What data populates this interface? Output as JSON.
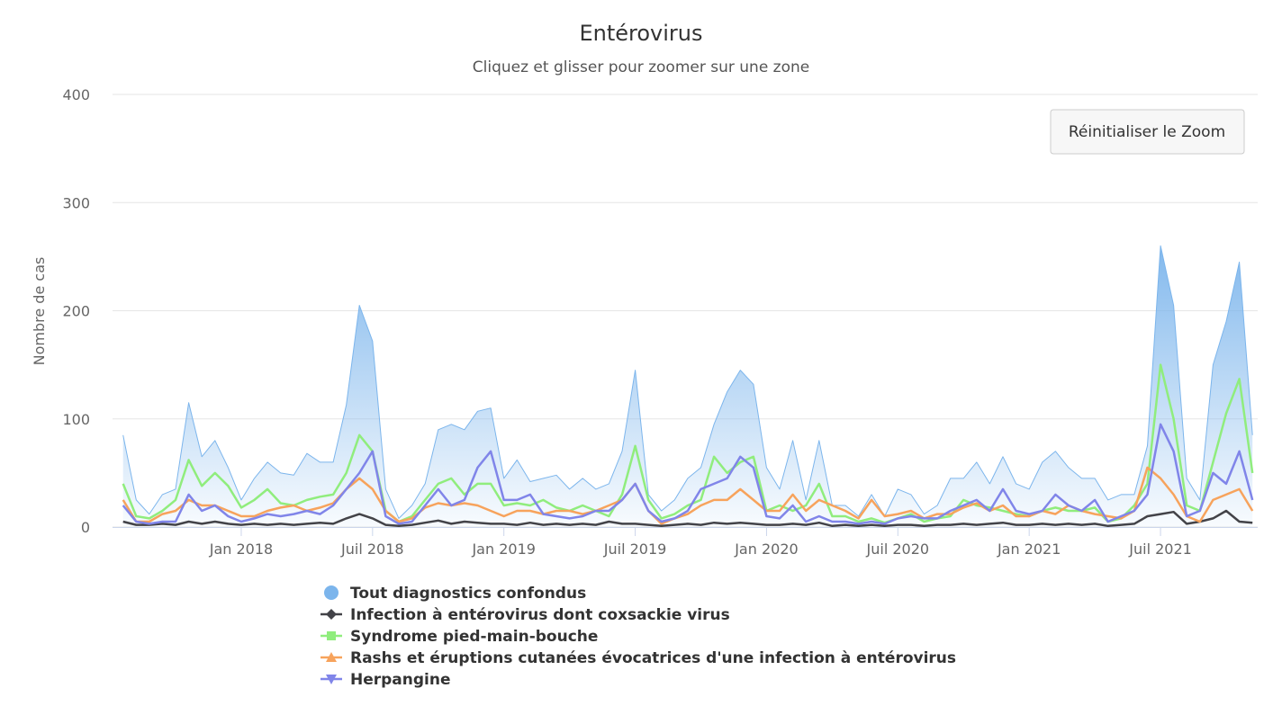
{
  "chart_data": {
    "type": "line",
    "title": "Entérovirus",
    "subtitle": "Cliquez et glisser pour zoomer sur une zone",
    "y_label": "Nombre de cas",
    "button": "Réinitialiser le Zoom",
    "grid": true,
    "xlim": [
      2017.51,
      2021.87
    ],
    "ylim": [
      0,
      400
    ],
    "yticks": [
      0,
      100,
      200,
      300,
      400
    ],
    "xticks": [
      {
        "value": 2018,
        "label": "Jan 2018"
      },
      {
        "value": 2018.5,
        "label": "Juil 2018"
      },
      {
        "value": 2019,
        "label": "Jan 2019"
      },
      {
        "value": 2019.5,
        "label": "Juil 2019"
      },
      {
        "value": 2020,
        "label": "Jan 2020"
      },
      {
        "value": 2020.5,
        "label": "Juil 2020"
      },
      {
        "value": 2021,
        "label": "Jan 2021"
      },
      {
        "value": 2021.5,
        "label": "Juil 2021"
      }
    ],
    "x": [
      2017.55,
      2017.6,
      2017.65,
      2017.7,
      2017.75,
      2017.8,
      2017.85,
      2017.9,
      2017.95,
      2018,
      2018.05,
      2018.1,
      2018.15,
      2018.2,
      2018.25,
      2018.3,
      2018.35,
      2018.4,
      2018.45,
      2018.5,
      2018.55,
      2018.6,
      2018.65,
      2018.7,
      2018.75,
      2018.8,
      2018.85,
      2018.9,
      2018.95,
      2019,
      2019.05,
      2019.1,
      2019.15,
      2019.2,
      2019.25,
      2019.3,
      2019.35,
      2019.4,
      2019.45,
      2019.5,
      2019.55,
      2019.6,
      2019.65,
      2019.7,
      2019.75,
      2019.8,
      2019.85,
      2019.9,
      2019.95,
      2020,
      2020.05,
      2020.1,
      2020.15,
      2020.2,
      2020.25,
      2020.3,
      2020.35,
      2020.4,
      2020.45,
      2020.5,
      2020.55,
      2020.6,
      2020.65,
      2020.7,
      2020.75,
      2020.8,
      2020.85,
      2020.9,
      2020.95,
      2021,
      2021.05,
      2021.1,
      2021.15,
      2021.2,
      2021.25,
      2021.3,
      2021.35,
      2021.4,
      2021.45,
      2021.5,
      2021.55,
      2021.6,
      2021.65,
      2021.7,
      2021.75,
      2021.8,
      2021.85
    ],
    "series": [
      {
        "name": "Tout diagnostics confondus",
        "color": "#7cb5ec",
        "area": true,
        "marker": "circle",
        "values": [
          85,
          25,
          12,
          30,
          35,
          115,
          65,
          80,
          55,
          25,
          45,
          60,
          50,
          48,
          68,
          60,
          60,
          113,
          205,
          172,
          35,
          8,
          20,
          40,
          90,
          95,
          90,
          107,
          110,
          45,
          62,
          42,
          45,
          48,
          35,
          45,
          35,
          40,
          70,
          145,
          30,
          15,
          25,
          45,
          55,
          95,
          125,
          145,
          132,
          55,
          35,
          80,
          25,
          80,
          20,
          20,
          10,
          30,
          10,
          35,
          30,
          12,
          20,
          45,
          45,
          60,
          40,
          65,
          40,
          35,
          60,
          70,
          55,
          45,
          45,
          25,
          30,
          30,
          75,
          260,
          205,
          45,
          25,
          150,
          190,
          245,
          85
        ]
      },
      {
        "name": "Infection à entérovirus dont coxsackie virus",
        "color": "#434348",
        "marker": "diamond",
        "values": [
          5,
          2,
          2,
          3,
          2,
          5,
          3,
          5,
          3,
          2,
          3,
          2,
          3,
          2,
          3,
          4,
          3,
          8,
          12,
          8,
          2,
          1,
          2,
          4,
          6,
          3,
          5,
          4,
          3,
          3,
          2,
          4,
          2,
          3,
          2,
          3,
          2,
          5,
          3,
          3,
          2,
          1,
          2,
          3,
          2,
          4,
          3,
          4,
          3,
          2,
          2,
          3,
          2,
          4,
          1,
          2,
          1,
          2,
          1,
          2,
          2,
          1,
          2,
          2,
          3,
          2,
          3,
          4,
          2,
          2,
          3,
          2,
          3,
          2,
          3,
          1,
          2,
          3,
          10,
          12,
          14,
          3,
          5,
          8,
          15,
          5,
          4
        ]
      },
      {
        "name": "Syndrome pied-main-bouche",
        "color": "#90ed7d",
        "marker": "square",
        "values": [
          40,
          10,
          8,
          15,
          25,
          62,
          38,
          50,
          38,
          18,
          25,
          35,
          22,
          20,
          25,
          28,
          30,
          50,
          85,
          70,
          15,
          5,
          10,
          25,
          40,
          45,
          30,
          40,
          40,
          20,
          22,
          20,
          25,
          18,
          15,
          20,
          15,
          10,
          30,
          75,
          25,
          8,
          12,
          20,
          25,
          65,
          50,
          60,
          65,
          15,
          20,
          15,
          20,
          40,
          10,
          10,
          5,
          8,
          4,
          8,
          12,
          5,
          8,
          10,
          25,
          20,
          18,
          15,
          12,
          10,
          15,
          18,
          15,
          15,
          18,
          5,
          8,
          20,
          40,
          150,
          100,
          20,
          15,
          60,
          105,
          137,
          50
        ]
      },
      {
        "name": "Rashs et éruptions cutanées évocatrices d'une infection à entérovirus",
        "color": "#f7a35c",
        "marker": "triangle",
        "values": [
          25,
          5,
          5,
          12,
          15,
          25,
          20,
          20,
          15,
          10,
          10,
          15,
          18,
          20,
          15,
          18,
          22,
          35,
          45,
          35,
          15,
          5,
          8,
          18,
          22,
          20,
          22,
          20,
          15,
          10,
          15,
          15,
          12,
          15,
          15,
          12,
          15,
          20,
          25,
          40,
          15,
          3,
          8,
          12,
          20,
          25,
          25,
          35,
          25,
          15,
          15,
          30,
          15,
          25,
          20,
          15,
          8,
          25,
          10,
          12,
          15,
          8,
          12,
          12,
          18,
          22,
          15,
          20,
          10,
          10,
          15,
          12,
          20,
          15,
          12,
          10,
          8,
          15,
          55,
          45,
          30,
          10,
          5,
          25,
          30,
          35,
          15
        ]
      },
      {
        "name": "Herpangine",
        "color": "#8085e9",
        "marker": "triangle-down",
        "values": [
          20,
          5,
          3,
          5,
          5,
          30,
          15,
          20,
          10,
          5,
          8,
          12,
          10,
          12,
          15,
          12,
          20,
          35,
          50,
          70,
          10,
          3,
          5,
          20,
          35,
          20,
          25,
          55,
          70,
          25,
          25,
          30,
          12,
          10,
          8,
          10,
          15,
          15,
          25,
          40,
          15,
          5,
          8,
          15,
          35,
          40,
          45,
          65,
          55,
          10,
          8,
          20,
          5,
          10,
          5,
          5,
          3,
          5,
          3,
          8,
          10,
          8,
          8,
          15,
          20,
          25,
          15,
          35,
          15,
          12,
          15,
          30,
          20,
          15,
          25,
          5,
          10,
          15,
          30,
          95,
          70,
          10,
          15,
          50,
          40,
          70,
          25
        ]
      }
    ]
  }
}
